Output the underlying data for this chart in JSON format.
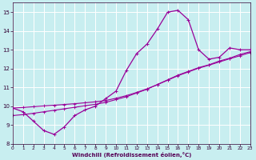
{
  "x": [
    0,
    1,
    2,
    3,
    4,
    5,
    6,
    7,
    8,
    9,
    10,
    11,
    12,
    13,
    14,
    15,
    16,
    17,
    18,
    19,
    20,
    21,
    22,
    23
  ],
  "y_main": [
    9.9,
    9.7,
    9.2,
    8.7,
    8.5,
    8.9,
    9.5,
    9.8,
    10.0,
    10.4,
    10.8,
    11.9,
    12.8,
    13.3,
    14.1,
    15.0,
    15.1,
    14.6,
    13.0,
    12.5,
    12.6,
    13.1,
    13.0,
    13.0
  ],
  "y_line1": [
    9.5,
    9.55,
    9.62,
    9.7,
    9.78,
    9.86,
    9.94,
    10.02,
    10.1,
    10.2,
    10.35,
    10.5,
    10.7,
    10.9,
    11.15,
    11.4,
    11.65,
    11.85,
    12.05,
    12.2,
    12.4,
    12.55,
    12.75,
    12.9
  ],
  "y_line2": [
    9.9,
    9.93,
    9.97,
    10.01,
    10.05,
    10.09,
    10.13,
    10.18,
    10.23,
    10.3,
    10.42,
    10.56,
    10.73,
    10.92,
    11.14,
    11.38,
    11.62,
    11.82,
    12.02,
    12.18,
    12.35,
    12.52,
    12.68,
    12.85
  ],
  "color": "#990099",
  "bg_color": "#c8eef0",
  "grid_color": "#ffffff",
  "xlabel": "Windchill (Refroidissement éolien,°C)",
  "xlim": [
    0,
    23
  ],
  "ylim": [
    8,
    15.5
  ],
  "yticks": [
    8,
    9,
    10,
    11,
    12,
    13,
    14,
    15
  ],
  "xticks": [
    0,
    1,
    2,
    3,
    4,
    5,
    6,
    7,
    8,
    9,
    10,
    11,
    12,
    13,
    14,
    15,
    16,
    17,
    18,
    19,
    20,
    21,
    22,
    23
  ]
}
